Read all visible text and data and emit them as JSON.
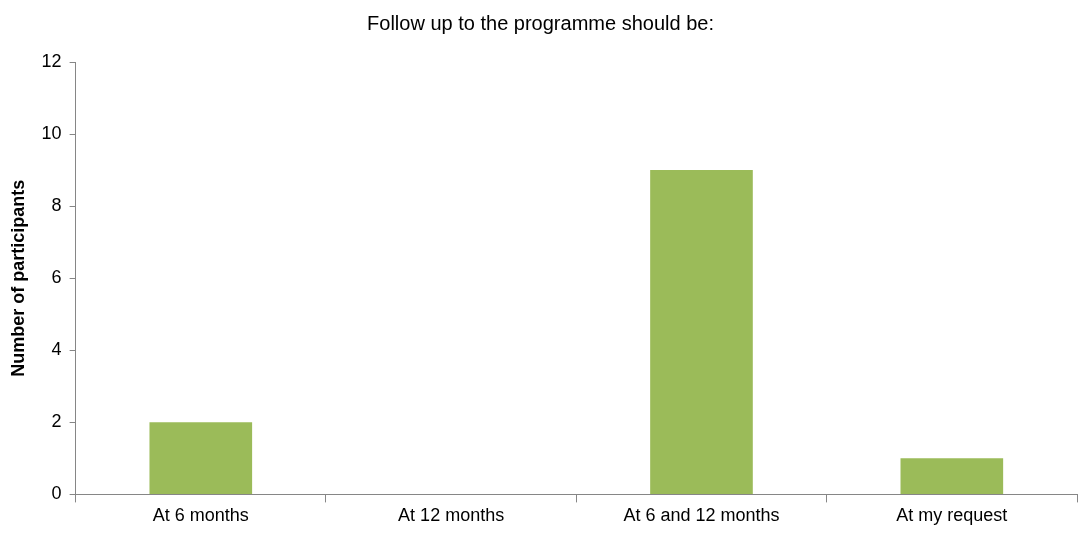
{
  "chart_data": {
    "type": "bar",
    "title": "Follow up to the programme should be:",
    "ylabel": "Number of participants",
    "categories": [
      "At 6 months",
      "At 12 months",
      "At 6 and 12 months",
      "At my request"
    ],
    "values": [
      2,
      0,
      9,
      1
    ],
    "color": "#9bbb59",
    "ylim": [
      0,
      12
    ],
    "yticks": [
      0,
      2,
      4,
      6,
      8,
      10,
      12
    ],
    "grid": false,
    "legend": false
  }
}
